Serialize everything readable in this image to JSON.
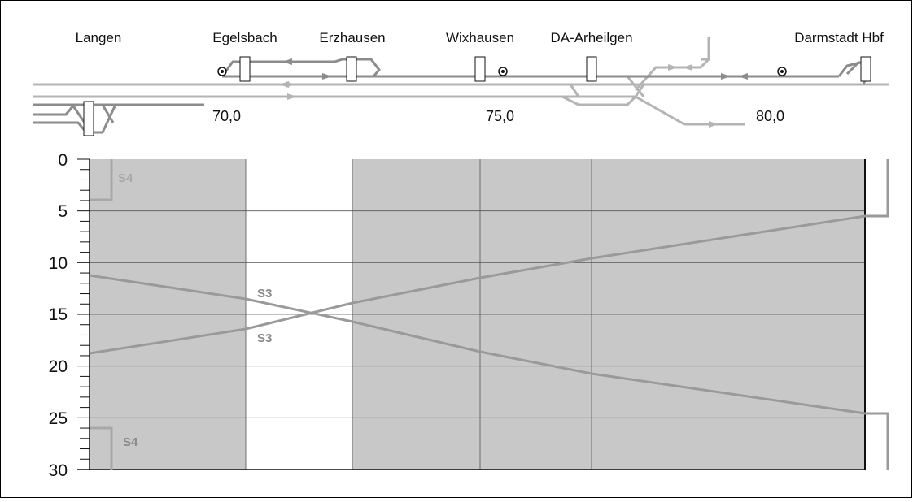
{
  "diagram": {
    "stations": [
      {
        "name": "Langen"
      },
      {
        "name": "Egelsbach"
      },
      {
        "name": "Erzhausen"
      },
      {
        "name": "Wixhausen"
      },
      {
        "name": "DA-Arheilgen"
      },
      {
        "name": "Darmstadt Hbf"
      }
    ],
    "km_markers": [
      "70,0",
      "75,0",
      "80,0"
    ],
    "y_axis": {
      "min": 0,
      "max": 30,
      "ticks": [
        "0",
        "5",
        "10",
        "15",
        "20",
        "25",
        "30"
      ]
    },
    "trains": [
      {
        "label": "S3",
        "direction": "southbound"
      },
      {
        "label": "S3",
        "direction": "northbound"
      },
      {
        "label": "S4",
        "position": "top"
      },
      {
        "label": "S4",
        "position": "bottom"
      }
    ],
    "colors": {
      "grid_fill": "#c8c8c8",
      "open_section": "#ffffff",
      "train_line": "#9a9a9a",
      "s4_line": "#a8a8a8",
      "track_light": "#b4b4b4",
      "track_dark": "#8c8c8c"
    }
  }
}
